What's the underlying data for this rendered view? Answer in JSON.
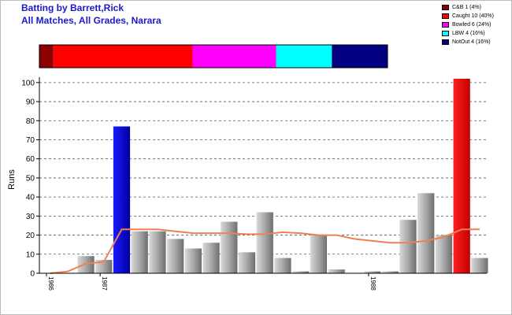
{
  "header": {
    "title_line1": "Batting by Barrett,Rick",
    "title_line2": "All Matches, All Grades, Narara"
  },
  "legend": [
    {
      "label": "C&B 1 (4%)",
      "color": "#8b0000"
    },
    {
      "label": "Caught 10 (40%)",
      "color": "#ff0000"
    },
    {
      "label": "Bowled 6 (24%)",
      "color": "#ff00ff"
    },
    {
      "label": "LBW 4 (16%)",
      "color": "#00ffff"
    },
    {
      "label": "NotOut 4 (16%)",
      "color": "#000080"
    }
  ],
  "chart_data": {
    "type": "bar",
    "ylabel": "Runs",
    "ylim": [
      0,
      102
    ],
    "yticks": [
      0,
      10,
      20,
      30,
      40,
      50,
      60,
      70,
      80,
      90,
      100
    ],
    "grid": "horizontal dashed",
    "x_tick_labels": [
      {
        "label": "1986",
        "index": 0
      },
      {
        "label": "1987",
        "index": 3
      },
      {
        "label": "1988",
        "index": 18
      }
    ],
    "values": [
      0,
      0,
      9,
      7,
      77,
      22,
      22,
      18,
      13,
      16,
      27,
      11,
      32,
      8,
      1,
      20,
      2,
      0,
      1,
      1,
      28,
      42,
      20,
      102,
      8
    ],
    "bar_colors": [
      "#9a9a9a",
      "#9a9a9a",
      "#9a9a9a",
      "#9a9a9a",
      "#0000c8",
      "#9a9a9a",
      "#9a9a9a",
      "#9a9a9a",
      "#9a9a9a",
      "#9a9a9a",
      "#9a9a9a",
      "#9a9a9a",
      "#9a9a9a",
      "#9a9a9a",
      "#9a9a9a",
      "#9a9a9a",
      "#9a9a9a",
      "#9a9a9a",
      "#9a9a9a",
      "#9a9a9a",
      "#9a9a9a",
      "#9a9a9a",
      "#9a9a9a",
      "#ee0000",
      "#9a9a9a"
    ],
    "average_line": [
      0,
      1,
      5,
      6,
      23,
      23,
      23,
      22,
      21,
      21,
      21,
      20.5,
      20.5,
      21.5,
      21,
      20,
      20,
      18,
      17,
      16,
      16,
      17,
      19,
      23,
      23
    ],
    "average_line_color": "#f08050",
    "dismissal_bar": [
      {
        "type": "C&B",
        "count": 1,
        "color": "#8b0000"
      },
      {
        "type": "Caught",
        "count": 10,
        "color": "#ff0000"
      },
      {
        "type": "Bowled",
        "count": 6,
        "color": "#ff00ff"
      },
      {
        "type": "LBW",
        "count": 4,
        "color": "#00ffff"
      },
      {
        "type": "NotOut",
        "count": 4,
        "color": "#000080"
      }
    ]
  }
}
